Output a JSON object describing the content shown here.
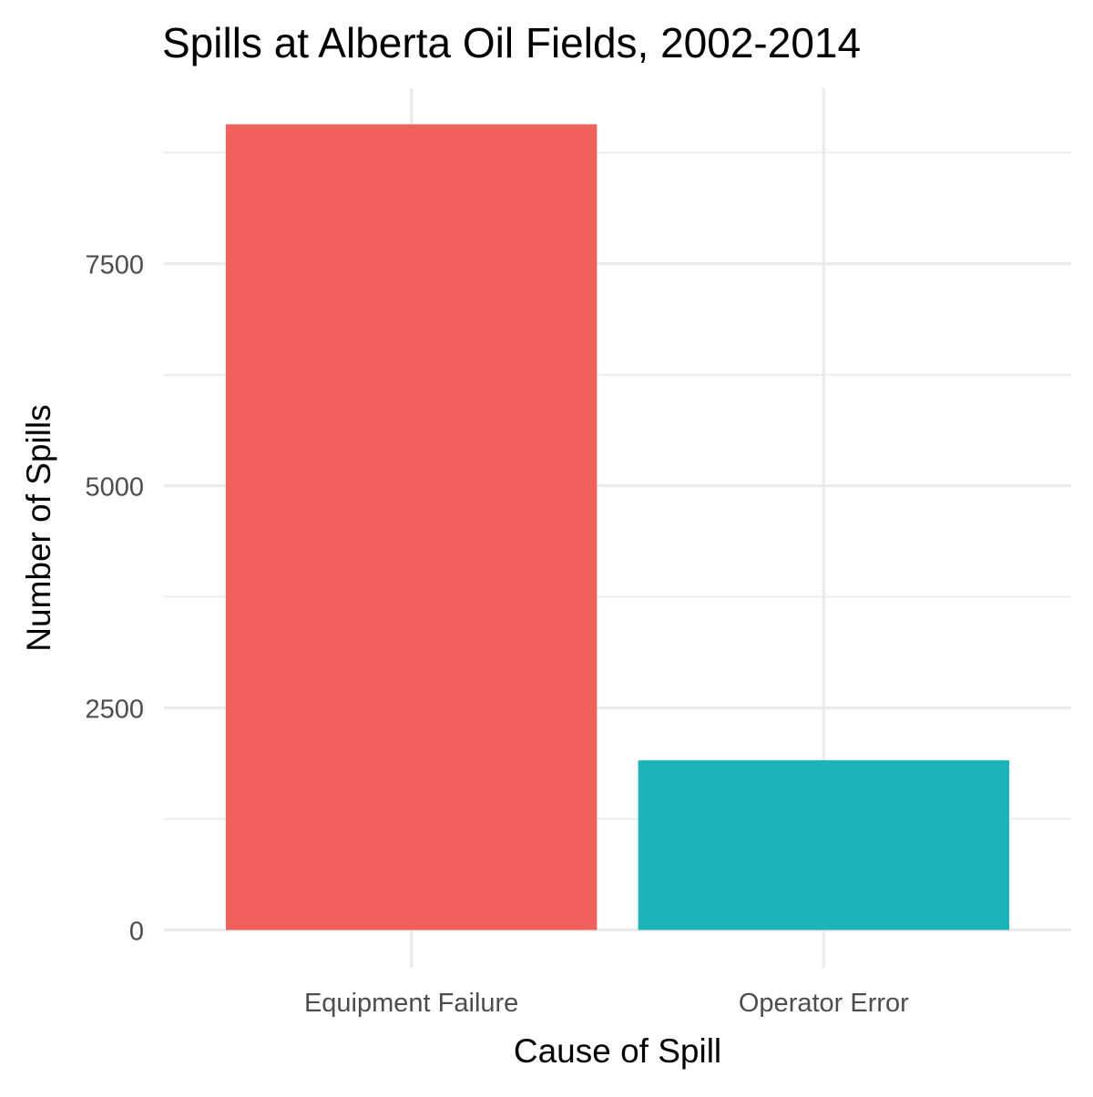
{
  "chart_data": {
    "type": "bar",
    "title": "Spills at Alberta Oil Fields, 2002-2014",
    "xlabel": "Cause of Spill",
    "ylabel": "Number of Spills",
    "categories": [
      "Equipment Failure",
      "Operator Error"
    ],
    "values": [
      9070,
      1910
    ],
    "colors": [
      "#F2605B",
      "#1BB4B9"
    ],
    "ylim": [
      -425,
      9475
    ],
    "y_ticks": [
      0,
      2500,
      5000,
      7500
    ],
    "y_tick_labels": [
      "0",
      "2500",
      "5000",
      "7500"
    ],
    "y_minor_ticks": [
      1250,
      3750,
      6250,
      8750
    ],
    "grid": true,
    "legend": "none",
    "theme": {
      "grid_color": "#EBEBEB",
      "axis_text_color": "#4D4D4D",
      "title_color": "#000000"
    }
  }
}
